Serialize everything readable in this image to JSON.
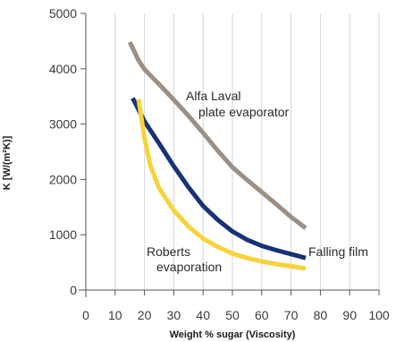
{
  "chart_data": {
    "type": "line",
    "title": "",
    "xlabel": "Weight % sugar (Viscosity)",
    "ylabel": "K [W/(m²K)]",
    "xlim": [
      0,
      100
    ],
    "ylim": [
      0,
      5000
    ],
    "x_ticks": [
      "0",
      "10",
      "20",
      "30",
      "40",
      "50",
      "60",
      "70",
      "80",
      "90",
      "100"
    ],
    "y_ticks": [
      "0",
      "1000",
      "2000",
      "3000",
      "4000",
      "5000"
    ],
    "grid": "vertical",
    "series": [
      {
        "name": "Alfa Laval plate evaporator",
        "label_lines": [
          "Alfa Laval",
          "plate evaporator"
        ],
        "color": "#9c8f85",
        "x": [
          15,
          18,
          20,
          25,
          30,
          35,
          40,
          45,
          50,
          55,
          60,
          65,
          70,
          75
        ],
        "y": [
          4480,
          4150,
          3990,
          3720,
          3440,
          3150,
          2840,
          2520,
          2220,
          1990,
          1770,
          1550,
          1320,
          1120
        ]
      },
      {
        "name": "Falling film",
        "label_lines": [
          "Falling film"
        ],
        "color": "#173275",
        "x": [
          16,
          20,
          25,
          30,
          35,
          40,
          45,
          50,
          55,
          60,
          65,
          70,
          75
        ],
        "y": [
          3470,
          3050,
          2650,
          2240,
          1860,
          1520,
          1270,
          1060,
          910,
          800,
          720,
          650,
          580
        ]
      },
      {
        "name": "Roberts evaporation",
        "label_lines": [
          "Roberts",
          "evaporation"
        ],
        "color": "#f7d33a",
        "x": [
          18,
          20,
          22,
          25,
          30,
          35,
          40,
          45,
          50,
          55,
          60,
          65,
          70,
          75
        ],
        "y": [
          3450,
          2750,
          2250,
          1840,
          1440,
          1150,
          930,
          780,
          660,
          580,
          520,
          470,
          430,
          390
        ]
      }
    ]
  }
}
